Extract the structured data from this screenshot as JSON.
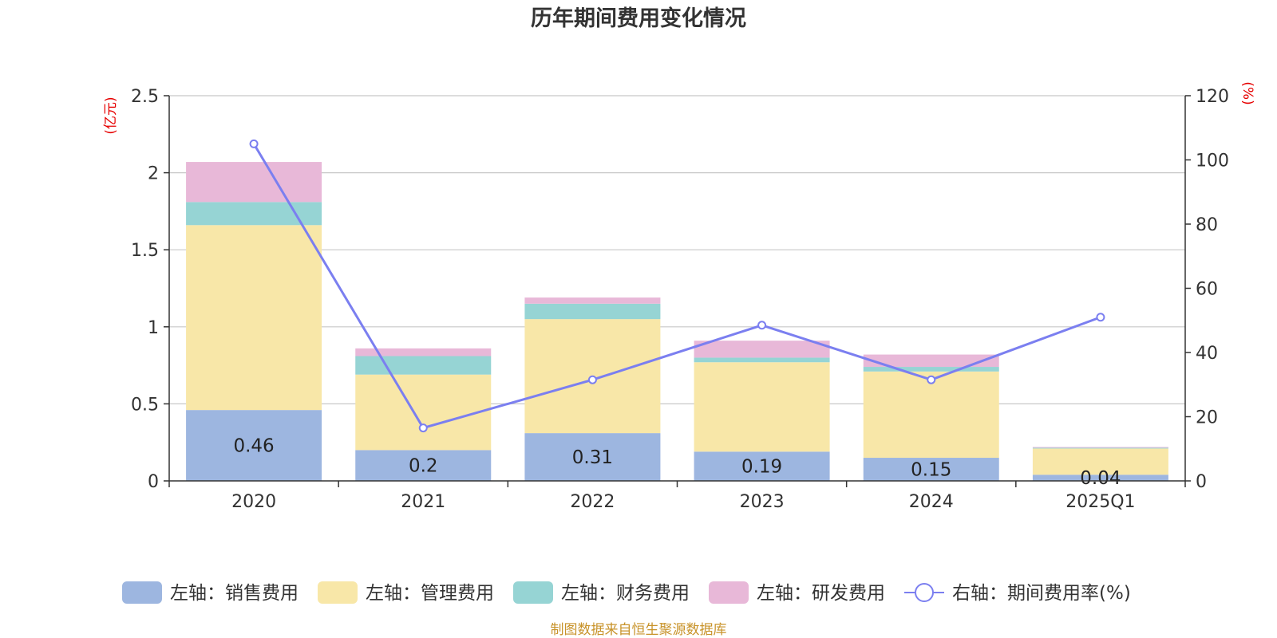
{
  "chart_data": {
    "type": "bar",
    "title": "历年期间费用变化情况",
    "categories": [
      "2020",
      "2021",
      "2022",
      "2023",
      "2024",
      "2025Q1"
    ],
    "left_axis": {
      "unit": "(亿元)",
      "ylim": [
        0,
        2.5
      ],
      "ticks": [
        "0",
        "0.5",
        "1",
        "1.5",
        "2",
        "2.5"
      ]
    },
    "right_axis": {
      "unit": "(%)",
      "ylim": [
        0,
        120
      ],
      "ticks": [
        "0",
        "20",
        "40",
        "60",
        "80",
        "100",
        "120"
      ]
    },
    "series": [
      {
        "name": "左轴：销售费用",
        "type": "bar",
        "axis": "left",
        "color": "#9db6e0",
        "values": [
          0.46,
          0.2,
          0.31,
          0.19,
          0.15,
          0.04
        ],
        "labels": [
          "0.46",
          "0.2",
          "0.31",
          "0.19",
          "0.15",
          "0.04"
        ]
      },
      {
        "name": "左轴：管理费用",
        "type": "bar",
        "axis": "left",
        "color": "#f8e7a8",
        "values": [
          1.2,
          0.49,
          0.74,
          0.58,
          0.56,
          0.17
        ]
      },
      {
        "name": "左轴：财务费用",
        "type": "bar",
        "axis": "left",
        "color": "#96d4d4",
        "values": [
          0.15,
          0.12,
          0.1,
          0.03,
          0.03,
          0.005
        ]
      },
      {
        "name": "左轴：研发费用",
        "type": "bar",
        "axis": "left",
        "color": "#e8b8d8",
        "values": [
          0.26,
          0.05,
          0.04,
          0.11,
          0.08,
          0.005
        ]
      },
      {
        "name": "右轴：期间费用率(%)",
        "type": "line",
        "axis": "right",
        "color": "#7b7ff0",
        "values": [
          105,
          16.5,
          31.5,
          48.5,
          31.5,
          51
        ]
      }
    ],
    "grid": true,
    "legend_position": "bottom",
    "source": "制图数据来自恒生聚源数据库"
  }
}
